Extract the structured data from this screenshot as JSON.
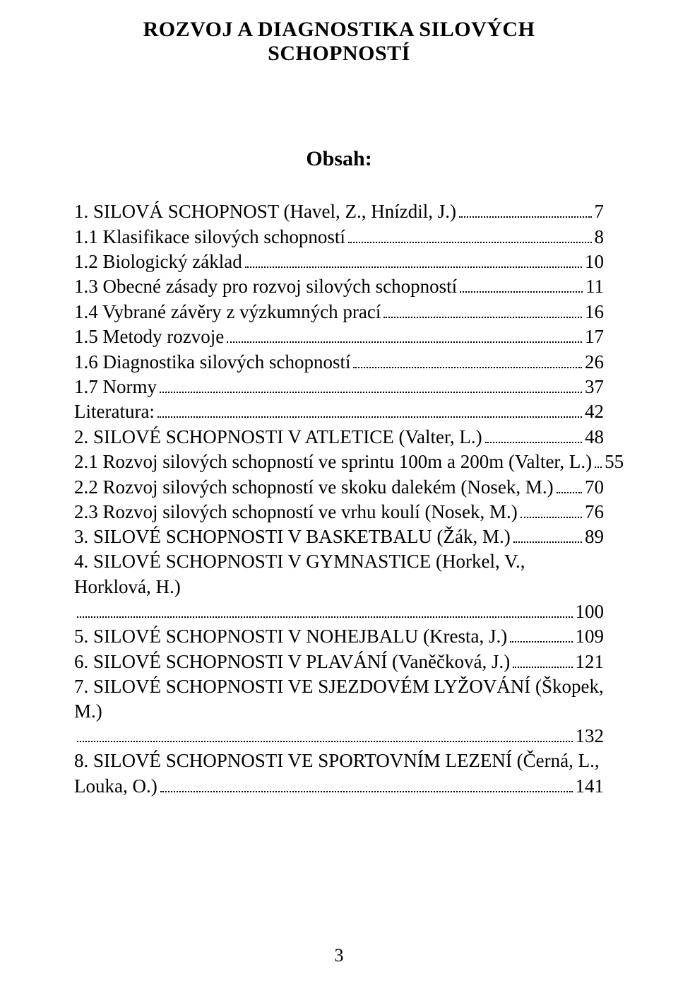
{
  "title": "ROZVOJ  A DIAGNOSTIKA SILOVÝCH SCHOPNOSTÍ",
  "toc_label": "Obsah:",
  "page_number": "3",
  "colors": {
    "background": "#ffffff",
    "text": "#000000"
  },
  "typography": {
    "family": "Times New Roman",
    "body_fontsize": 27,
    "title_fontsize": 30
  },
  "entries": {
    "e0": {
      "text": "1. SILOVÁ SCHOPNOST (Havel, Z., Hnízdil, J.)",
      "page": "7"
    },
    "e1": {
      "text": "1.1 Klasifikace silových schopností",
      "page": "8"
    },
    "e2": {
      "text": "1.2 Biologický základ",
      "page": "10"
    },
    "e3": {
      "text": "1.3 Obecné zásady pro rozvoj silových schopností",
      "page": "11"
    },
    "e4": {
      "text": "1.4 Vybrané závěry z výzkumných prací",
      "page": "16"
    },
    "e5": {
      "text": "1.5 Metody rozvoje",
      "page": "17"
    },
    "e6": {
      "text": "1.6 Diagnostika silových schopností",
      "page": "26"
    },
    "e7": {
      "text": "1.7 Normy",
      "page": "37"
    },
    "e8": {
      "text": "Literatura:",
      "page": "42"
    },
    "e9": {
      "text": "2. SILOVÉ SCHOPNOSTI V ATLETICE (Valter, L.)",
      "page": "48"
    },
    "e10": {
      "text": "2.1 Rozvoj silových schopností ve sprintu 100m a 200m (Valter, L.)",
      "page": "55"
    },
    "e11": {
      "text": "2.2 Rozvoj silových schopností ve skoku dalekém (Nosek, M.)",
      "page": "70"
    },
    "e12": {
      "text": "2.3 Rozvoj silových schopností ve vrhu koulí (Nosek, M.)",
      "page": "76"
    },
    "e13": {
      "text": "3. SILOVÉ SCHOPNOSTI V BASKETBALU (Žák, M.)",
      "page": "89"
    },
    "e14": {
      "text": "4. SILOVÉ SCHOPNOSTI V GYMNASTICE (Horkel, V., Horklová, H.)",
      "page": "100"
    },
    "e15": {
      "text": "5. SILOVÉ SCHOPNOSTI V NOHEJBALU (Kresta, J.)",
      "page": "109"
    },
    "e16": {
      "text": "6. SILOVÉ SCHOPNOSTI V PLAVÁNÍ (Vaněčková, J.)",
      "page": "121"
    },
    "e17": {
      "text": "7. SILOVÉ SCHOPNOSTI VE SJEZDOVÉM LYŽOVÁNÍ (Škopek, M.)",
      "page": "132"
    },
    "e18a": {
      "text": "8. SILOVÉ SCHOPNOSTI VE SPORTOVNÍM LEZENÍ (Černá, L.,"
    },
    "e18b": {
      "text": "Louka, O.)",
      "page": "141"
    }
  }
}
